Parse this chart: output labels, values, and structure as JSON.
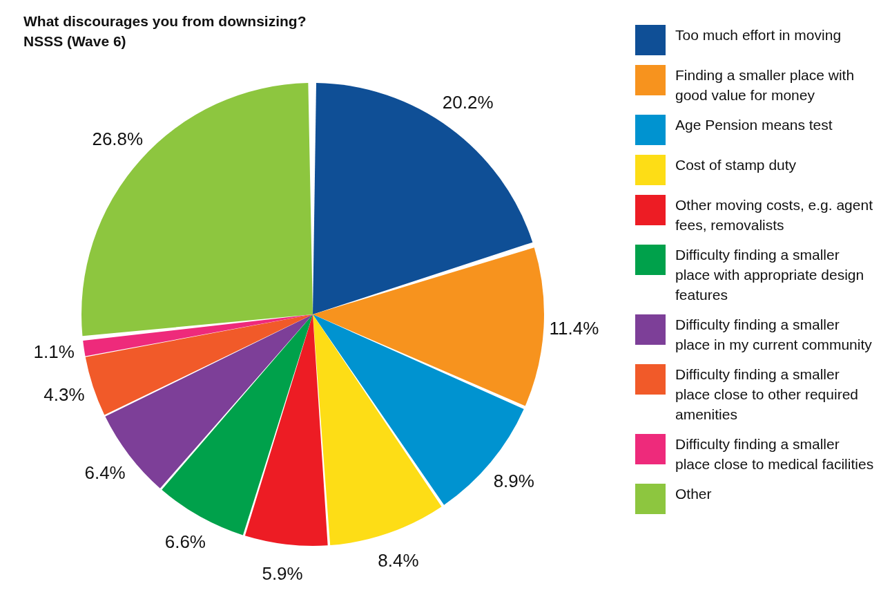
{
  "chart_data": {
    "type": "pie",
    "title": "What discourages you from downsizing?",
    "subtitle": "NSSS (Wave 6)",
    "categories": [
      "Too much effort in moving",
      "Finding a smaller place with good value for money",
      "Age Pension means test",
      "Cost of stamp duty",
      "Other moving costs, e.g. agent fees, removalists",
      "Difficulty finding a smaller place with appropriate design features",
      "Difficulty finding a smaller place in my current community",
      "Difficulty finding a smaller place close to other required amenities",
      "Difficulty finding a smaller place close to medical facilities",
      "Other"
    ],
    "values": [
      20.2,
      11.4,
      8.9,
      8.4,
      5.9,
      6.6,
      6.4,
      4.3,
      1.1,
      26.8
    ],
    "value_labels": [
      "20.2%",
      "11.4%",
      "8.9%",
      "8.4%",
      "5.9%",
      "6.6%",
      "6.4%",
      "4.3%",
      "1.1%",
      "26.8%"
    ],
    "colors": [
      "#0f4f96",
      "#f7931e",
      "#0093d0",
      "#fddd16",
      "#ed1c24",
      "#00a14b",
      "#7d3f98",
      "#f15a29",
      "#ee2a7b",
      "#8dc63f"
    ],
    "legend": "right"
  }
}
